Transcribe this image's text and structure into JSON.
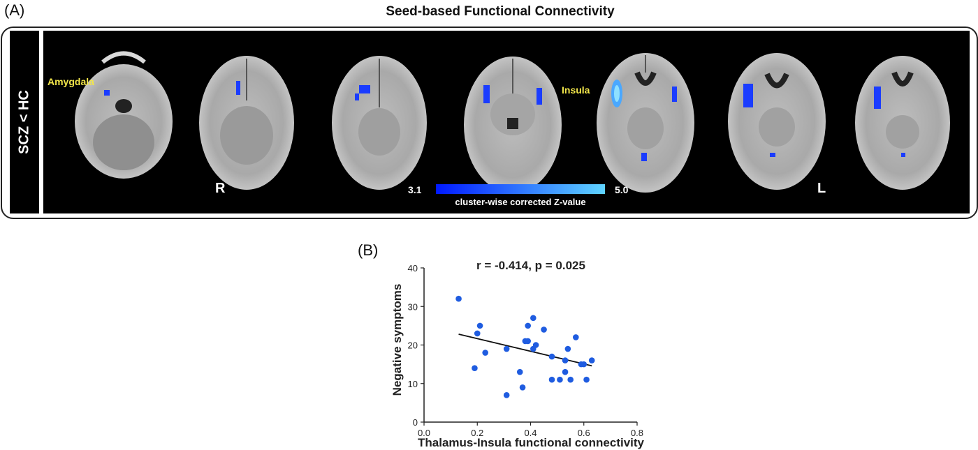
{
  "panel_a": {
    "letter": "(A)",
    "title": "Seed-based Functional Connectivity",
    "side_label": "SCZ < HC",
    "region_labels": {
      "amygdala": "Amygdala",
      "insula": "Insula"
    },
    "orientation": {
      "right": "R",
      "left": "L"
    },
    "colorbar": {
      "min_label": "3.1",
      "max_label": "5.0",
      "caption": "cluster-wise corrected Z-value",
      "color_low": "#0019ff",
      "color_high": "#5fd3ff"
    },
    "slice_count": 7
  },
  "panel_b": {
    "letter": "(B)"
  },
  "chart_data": {
    "type": "scatter",
    "title": "r = -0.414, p = 0.025",
    "xlabel": "Thalamus-Insula functional connectivity",
    "ylabel": "Negative symptoms",
    "xlim": [
      0.0,
      0.8
    ],
    "ylim": [
      0,
      40
    ],
    "xticks": [
      "0.0",
      "0.2",
      "0.4",
      "0.6",
      "0.8"
    ],
    "yticks": [
      "0",
      "10",
      "20",
      "30",
      "40"
    ],
    "grid": false,
    "point_color": "#1f5ce0",
    "points": [
      {
        "x": 0.13,
        "y": 32
      },
      {
        "x": 0.19,
        "y": 14
      },
      {
        "x": 0.2,
        "y": 23
      },
      {
        "x": 0.21,
        "y": 25
      },
      {
        "x": 0.23,
        "y": 18
      },
      {
        "x": 0.31,
        "y": 19
      },
      {
        "x": 0.31,
        "y": 7
      },
      {
        "x": 0.36,
        "y": 13
      },
      {
        "x": 0.37,
        "y": 9
      },
      {
        "x": 0.38,
        "y": 21
      },
      {
        "x": 0.39,
        "y": 25
      },
      {
        "x": 0.39,
        "y": 21
      },
      {
        "x": 0.41,
        "y": 27
      },
      {
        "x": 0.41,
        "y": 19
      },
      {
        "x": 0.42,
        "y": 20
      },
      {
        "x": 0.45,
        "y": 24
      },
      {
        "x": 0.48,
        "y": 17
      },
      {
        "x": 0.48,
        "y": 11
      },
      {
        "x": 0.51,
        "y": 11
      },
      {
        "x": 0.53,
        "y": 16
      },
      {
        "x": 0.53,
        "y": 13
      },
      {
        "x": 0.54,
        "y": 19
      },
      {
        "x": 0.55,
        "y": 11
      },
      {
        "x": 0.57,
        "y": 22
      },
      {
        "x": 0.59,
        "y": 15
      },
      {
        "x": 0.6,
        "y": 15
      },
      {
        "x": 0.61,
        "y": 11
      },
      {
        "x": 0.63,
        "y": 16
      }
    ],
    "regression_line": {
      "x": [
        0.13,
        0.63
      ],
      "y": [
        22.8,
        14.6
      ]
    }
  }
}
